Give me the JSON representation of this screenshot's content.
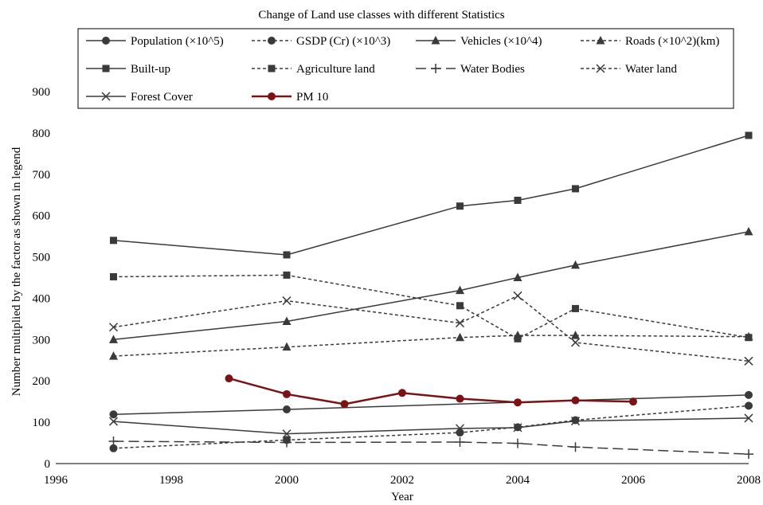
{
  "chart_data": {
    "type": "line",
    "title": "Change of Land use classes with different Statistics",
    "xlabel": "Year",
    "ylabel": "Number multiplied by the factor as shown in legend",
    "xlim": [
      1996,
      2008
    ],
    "ylim": [
      0,
      900
    ],
    "x_ticks": [
      "1996",
      "1998",
      "2000",
      "2002",
      "2004",
      "2006",
      "2008"
    ],
    "y_ticks": [
      "0",
      "100",
      "200",
      "300",
      "400",
      "500",
      "600",
      "700",
      "800",
      "900"
    ],
    "grid": false,
    "legend_position": "top",
    "series": [
      {
        "name": "Population (×10^5)",
        "color": "#3a3a3a",
        "dash": "solid",
        "marker": "circle",
        "points": [
          [
            1997,
            119
          ],
          [
            2000,
            131
          ],
          [
            2008,
            166
          ]
        ]
      },
      {
        "name": "GSDP (Cr) (×10^3)",
        "color": "#3a3a3a",
        "dash": "short",
        "marker": "circle",
        "points": [
          [
            1997,
            37
          ],
          [
            2000,
            57
          ],
          [
            2003,
            75
          ],
          [
            2004,
            88
          ],
          [
            2005,
            105
          ],
          [
            2008,
            140
          ]
        ]
      },
      {
        "name": "Vehicles (×10^4)",
        "color": "#3a3a3a",
        "dash": "solid",
        "marker": "triangle",
        "points": [
          [
            1997,
            300
          ],
          [
            2000,
            344
          ],
          [
            2003,
            419
          ],
          [
            2004,
            450
          ],
          [
            2005,
            480
          ],
          [
            2008,
            561
          ]
        ]
      },
      {
        "name": "Roads (×10^2)(km)",
        "color": "#3a3a3a",
        "dash": "short",
        "marker": "triangle",
        "points": [
          [
            1997,
            260
          ],
          [
            2000,
            282
          ],
          [
            2003,
            305
          ],
          [
            2004,
            310
          ],
          [
            2005,
            310
          ],
          [
            2008,
            307
          ]
        ]
      },
      {
        "name": "Built-up",
        "color": "#3a3a3a",
        "dash": "solid",
        "marker": "square",
        "points": [
          [
            1997,
            540
          ],
          [
            2000,
            505
          ],
          [
            2003,
            623
          ],
          [
            2004,
            637
          ],
          [
            2005,
            665
          ],
          [
            2008,
            794
          ]
        ]
      },
      {
        "name": "Agriculture land",
        "color": "#3a3a3a",
        "dash": "short",
        "marker": "square",
        "points": [
          [
            1997,
            452
          ],
          [
            2000,
            456
          ],
          [
            2003,
            382
          ],
          [
            2004,
            302
          ],
          [
            2005,
            375
          ],
          [
            2008,
            305
          ]
        ]
      },
      {
        "name": "Water Bodies",
        "color": "#3a3a3a",
        "dash": "long",
        "marker": "plus",
        "points": [
          [
            1997,
            54
          ],
          [
            2000,
            51
          ],
          [
            2003,
            52
          ],
          [
            2004,
            49
          ],
          [
            2005,
            40
          ],
          [
            2008,
            23
          ]
        ]
      },
      {
        "name": "Water land",
        "color": "#3a3a3a",
        "dash": "short",
        "marker": "x",
        "points": [
          [
            1997,
            330
          ],
          [
            2000,
            394
          ],
          [
            2003,
            340
          ],
          [
            2004,
            406
          ],
          [
            2005,
            293
          ],
          [
            2008,
            248
          ]
        ]
      },
      {
        "name": "Forest Cover",
        "color": "#3a3a3a",
        "dash": "solid",
        "marker": "x",
        "points": [
          [
            1997,
            102
          ],
          [
            2000,
            72
          ],
          [
            2003,
            85
          ],
          [
            2004,
            87
          ],
          [
            2005,
            103
          ],
          [
            2008,
            110
          ]
        ]
      },
      {
        "name": "PM 10",
        "color": "#7b1216",
        "dash": "solid",
        "marker": "circle",
        "points": [
          [
            1999,
            206
          ],
          [
            2000,
            168
          ],
          [
            2001,
            144
          ],
          [
            2002,
            171
          ],
          [
            2003,
            157
          ],
          [
            2004,
            148
          ],
          [
            2005,
            153
          ],
          [
            2006,
            150
          ]
        ]
      }
    ]
  }
}
